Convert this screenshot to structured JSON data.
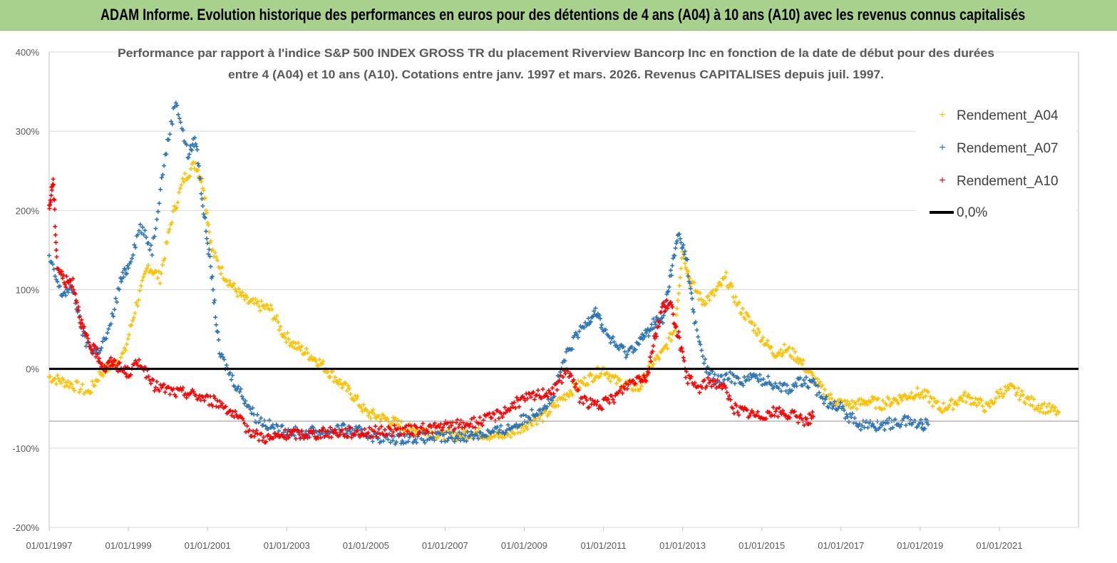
{
  "banner": {
    "title": "ADAM Informe. Evolution historique des performances en euros pour des détentions de 4 ans (A04) à 10 ans (A10) avec les revenus connus capitalisés"
  },
  "colors": {
    "banner_bg": "#a9d18e",
    "series_a04": "#ffc000",
    "series_a07": "#2e75b6",
    "series_a10": "#ff0000",
    "zero_line": "#000000",
    "grid": "#d9d9d9"
  },
  "chart_data": {
    "type": "scatter",
    "title_line1": "Performance par rapport à l'indice S&P 500 INDEX GROSS TR  du placement Riverview  Bancorp Inc en fonction de la date de début pour des durées",
    "title_line2": "entre 4 (A04) et 10 ans (A10). Cotations entre janv. 1997 et mars. 2026. Revenus CAPITALISES depuis juil. 1997.",
    "xlabel": "",
    "ylabel": "",
    "xlim": [
      1997.0,
      2023.0
    ],
    "ylim": [
      -200,
      400
    ],
    "y_ticks": [
      {
        "value": 400,
        "label": "400%"
      },
      {
        "value": 300,
        "label": "300%"
      },
      {
        "value": 200,
        "label": "200%"
      },
      {
        "value": 100,
        "label": "100%"
      },
      {
        "value": 0,
        "label": "0%"
      },
      {
        "value": -100,
        "label": "-100%"
      },
      {
        "value": -200,
        "label": "-200%"
      }
    ],
    "x_ticks": [
      {
        "value": 1997,
        "label": "01/01/1997"
      },
      {
        "value": 1999,
        "label": "01/01/1999"
      },
      {
        "value": 2001,
        "label": "01/01/2001"
      },
      {
        "value": 2003,
        "label": "01/01/2003"
      },
      {
        "value": 2005,
        "label": "01/01/2005"
      },
      {
        "value": 2007,
        "label": "01/01/2007"
      },
      {
        "value": 2009,
        "label": "01/01/2009"
      },
      {
        "value": 2011,
        "label": "01/01/2011"
      },
      {
        "value": 2013,
        "label": "01/01/2013"
      },
      {
        "value": 2015,
        "label": "01/01/2015"
      },
      {
        "value": 2017,
        "label": "01/01/2017"
      },
      {
        "value": 2019,
        "label": "01/01/2019"
      },
      {
        "value": 2021,
        "label": "01/01/2021"
      }
    ],
    "reference_line_value": -66,
    "legend_position": "top-right",
    "series": [
      {
        "name": "Rendement_A04",
        "color": "#ffc000",
        "x": [
          1997.0,
          1997.3,
          1997.6,
          1998.0,
          1998.3,
          1998.6,
          1998.9,
          1999.2,
          1999.5,
          1999.8,
          2000.1,
          2000.4,
          2000.7,
          2000.9,
          2001.1,
          2001.4,
          2001.7,
          2002.0,
          2002.3,
          2002.6,
          2002.9,
          2003.2,
          2003.5,
          2003.8,
          2004.1,
          2004.4,
          2004.7,
          2005.0,
          2005.3,
          2005.6,
          2005.9,
          2006.2,
          2006.5,
          2006.8,
          2007.1,
          2007.4,
          2007.7,
          2008.0,
          2008.3,
          2008.6,
          2008.9,
          2009.2,
          2009.5,
          2009.8,
          2010.1,
          2010.4,
          2010.7,
          2011.0,
          2011.3,
          2011.6,
          2011.9,
          2012.2,
          2012.5,
          2012.8,
          2013.0,
          2013.2,
          2013.5,
          2013.8,
          2014.1,
          2014.4,
          2014.7,
          2015.0,
          2015.3,
          2015.6,
          2015.9,
          2016.2,
          2016.5,
          2016.8,
          2017.1,
          2017.4,
          2017.7,
          2018.0,
          2018.3,
          2018.6,
          2018.9,
          2019.2,
          2019.5,
          2019.8,
          2020.1,
          2020.4,
          2020.7,
          2021.0,
          2021.3,
          2021.6,
          2021.9,
          2022.2,
          2022.5
        ],
        "y": [
          -10,
          -15,
          -20,
          -30,
          -5,
          5,
          20,
          80,
          130,
          115,
          190,
          240,
          260,
          230,
          150,
          120,
          100,
          85,
          80,
          75,
          45,
          30,
          20,
          10,
          -5,
          -20,
          -35,
          -55,
          -60,
          -65,
          -72,
          -78,
          -78,
          -82,
          -85,
          -83,
          -80,
          -82,
          -85,
          -82,
          -75,
          -65,
          -60,
          -45,
          -30,
          -20,
          -10,
          0,
          -15,
          -20,
          -25,
          5,
          20,
          50,
          150,
          110,
          85,
          95,
          115,
          80,
          60,
          40,
          20,
          25,
          15,
          -5,
          -25,
          -40,
          -45,
          -45,
          -40,
          -45,
          -40,
          -35,
          -30,
          -35,
          -50,
          -45,
          -35,
          -40,
          -50,
          -30,
          -25,
          -35,
          -45,
          -50,
          -55
        ]
      },
      {
        "name": "Rendement_A07",
        "color": "#2e75b6",
        "x": [
          1997.0,
          1997.3,
          1997.6,
          1997.9,
          1998.2,
          1998.5,
          1998.8,
          1999.0,
          1999.3,
          1999.6,
          1999.9,
          2000.2,
          2000.5,
          2000.7,
          2000.9,
          2001.1,
          2001.3,
          2001.6,
          2001.9,
          2002.2,
          2002.5,
          2002.8,
          2003.1,
          2003.4,
          2003.7,
          2004.0,
          2004.3,
          2004.6,
          2004.9,
          2005.2,
          2005.5,
          2005.8,
          2006.1,
          2006.4,
          2006.7,
          2007.0,
          2007.3,
          2007.6,
          2007.9,
          2008.2,
          2008.5,
          2008.8,
          2009.1,
          2009.4,
          2009.7,
          2010.0,
          2010.3,
          2010.6,
          2010.8,
          2011.0,
          2011.3,
          2011.6,
          2011.9,
          2012.1,
          2012.3,
          2012.5,
          2012.7,
          2012.9,
          2013.1,
          2013.3,
          2013.6,
          2013.9,
          2014.2,
          2014.5,
          2014.8,
          2015.1,
          2015.4,
          2015.7,
          2016.0,
          2016.3,
          2016.6,
          2016.9,
          2017.2,
          2017.5,
          2017.8,
          2018.1,
          2018.4,
          2018.7,
          2019.0,
          2019.2
        ],
        "y": [
          140,
          95,
          100,
          35,
          20,
          45,
          110,
          130,
          180,
          150,
          260,
          340,
          270,
          290,
          200,
          120,
          20,
          -10,
          -35,
          -60,
          -70,
          -78,
          -78,
          -83,
          -78,
          -80,
          -75,
          -78,
          -80,
          -85,
          -88,
          -88,
          -86,
          -87,
          -86,
          -87,
          -85,
          -84,
          -82,
          -80,
          -77,
          -70,
          -60,
          -50,
          -40,
          10,
          40,
          60,
          75,
          50,
          30,
          20,
          35,
          45,
          60,
          60,
          120,
          170,
          140,
          60,
          0,
          -15,
          -10,
          -15,
          -10,
          -15,
          -20,
          -25,
          -15,
          -20,
          -40,
          -45,
          -60,
          -70,
          -72,
          -70,
          -68,
          -65,
          -70,
          -70
        ]
      },
      {
        "name": "Rendement_A10",
        "color": "#ff0000",
        "x": [
          1997.0,
          1997.1,
          1997.2,
          1997.4,
          1997.6,
          1997.8,
          1998.0,
          1998.2,
          1998.4,
          1998.6,
          1998.8,
          1999.0,
          1999.3,
          1999.6,
          1999.9,
          2000.2,
          2000.5,
          2000.8,
          2001.1,
          2001.4,
          2001.7,
          2002.0,
          2002.3,
          2002.6,
          2002.9,
          2003.2,
          2003.5,
          2003.8,
          2004.1,
          2004.4,
          2004.7,
          2005.0,
          2005.3,
          2005.6,
          2005.9,
          2006.2,
          2006.5,
          2006.8,
          2007.1,
          2007.4,
          2007.7,
          2008.0,
          2008.3,
          2008.6,
          2008.9,
          2009.2,
          2009.5,
          2009.8,
          2010.1,
          2010.4,
          2010.7,
          2011.0,
          2011.3,
          2011.6,
          2011.9,
          2012.1,
          2012.3,
          2012.5,
          2012.7,
          2012.9,
          2013.1,
          2013.4,
          2013.7,
          2014.0,
          2014.3,
          2014.6,
          2014.9,
          2015.2,
          2015.5,
          2015.8,
          2016.1,
          2016.3
        ],
        "y": [
          200,
          240,
          130,
          110,
          110,
          60,
          30,
          20,
          0,
          10,
          0,
          -5,
          10,
          -20,
          -25,
          -30,
          -30,
          -35,
          -40,
          -45,
          -60,
          -75,
          -85,
          -88,
          -84,
          -82,
          -82,
          -82,
          -80,
          -80,
          -80,
          -80,
          -79,
          -78,
          -78,
          -78,
          -75,
          -74,
          -72,
          -70,
          -68,
          -65,
          -58,
          -50,
          -40,
          -35,
          -30,
          -25,
          0,
          -35,
          -45,
          -45,
          -35,
          -20,
          -10,
          -10,
          40,
          80,
          80,
          40,
          -10,
          -25,
          -15,
          -20,
          -50,
          -55,
          -60,
          -55,
          -55,
          -60,
          -65,
          -60
        ]
      }
    ],
    "legend": [
      {
        "label": "Rendement_A04",
        "marker": "plus",
        "color": "#ffc000"
      },
      {
        "label": "Rendement_A07",
        "marker": "plus",
        "color": "#2e75b6"
      },
      {
        "label": "Rendement_A10",
        "marker": "plus",
        "color": "#ff0000"
      },
      {
        "label": "0,0%",
        "marker": "line",
        "color": "#000000"
      }
    ]
  }
}
